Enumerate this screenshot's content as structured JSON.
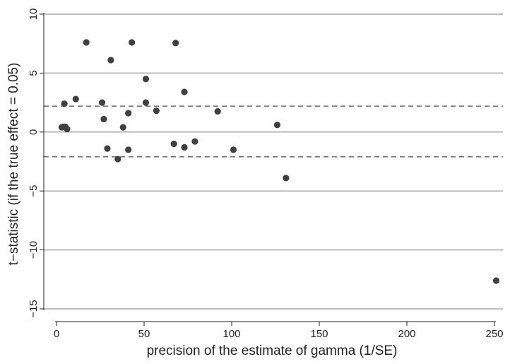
{
  "chart_data": {
    "type": "scatter",
    "xlabel": "precision of the estimate of gamma (1/SE)",
    "ylabel": "t−statistic (if the true effect = 0.05)",
    "xlim": [
      0,
      250
    ],
    "ylim": [
      -15,
      10
    ],
    "x_ticks": [
      0,
      50,
      100,
      150,
      200,
      250
    ],
    "y_ticks": [
      -15,
      -10,
      -5,
      0,
      5,
      10
    ],
    "x_tick_labels": [
      "0",
      "50",
      "100",
      "150",
      "200",
      "250"
    ],
    "y_tick_labels": [
      "−15",
      "−10",
      "−5",
      "0",
      "5",
      "10"
    ],
    "grid": true,
    "reference_lines": [
      2.2,
      -2.1
    ],
    "point_color": "#404040",
    "points": [
      {
        "x": 3,
        "y": 0.4
      },
      {
        "x": 4,
        "y": 0.45
      },
      {
        "x": 4.5,
        "y": 2.4
      },
      {
        "x": 5,
        "y": 0.45
      },
      {
        "x": 6,
        "y": 0.25
      },
      {
        "x": 11,
        "y": 2.8
      },
      {
        "x": 17,
        "y": 7.6
      },
      {
        "x": 26,
        "y": 2.5
      },
      {
        "x": 27,
        "y": 1.1
      },
      {
        "x": 29,
        "y": -1.4
      },
      {
        "x": 31,
        "y": 6.1
      },
      {
        "x": 35,
        "y": -2.3
      },
      {
        "x": 38,
        "y": 0.4
      },
      {
        "x": 41,
        "y": 1.6
      },
      {
        "x": 41,
        "y": -1.5
      },
      {
        "x": 43,
        "y": 7.6
      },
      {
        "x": 51,
        "y": 4.5
      },
      {
        "x": 51,
        "y": 2.5
      },
      {
        "x": 57,
        "y": 1.8
      },
      {
        "x": 67,
        "y": -1.0
      },
      {
        "x": 68,
        "y": 7.55
      },
      {
        "x": 73,
        "y": 3.4
      },
      {
        "x": 73,
        "y": -1.3
      },
      {
        "x": 79,
        "y": -0.8
      },
      {
        "x": 92,
        "y": 1.75
      },
      {
        "x": 101,
        "y": -1.5
      },
      {
        "x": 126,
        "y": 0.6
      },
      {
        "x": 131,
        "y": -3.9
      },
      {
        "x": 251,
        "y": -12.6
      }
    ]
  }
}
